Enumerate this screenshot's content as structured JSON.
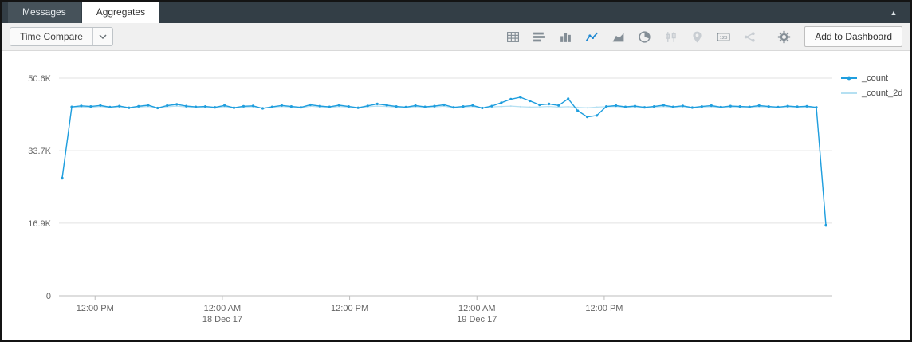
{
  "window": {
    "collapse_glyph": "▲"
  },
  "tabs": [
    {
      "label": "Messages",
      "active": false
    },
    {
      "label": "Aggregates",
      "active": true
    }
  ],
  "toolbar": {
    "time_compare_label": "Time Compare",
    "add_to_dashboard_label": "Add to Dashboard",
    "single_value_icon_text": "123",
    "icons": [
      {
        "name": "table",
        "state": "enabled"
      },
      {
        "name": "bar-chart-horizontal",
        "state": "enabled"
      },
      {
        "name": "column-chart",
        "state": "enabled"
      },
      {
        "name": "line-chart",
        "state": "active"
      },
      {
        "name": "area-chart",
        "state": "enabled"
      },
      {
        "name": "pie-chart",
        "state": "enabled"
      },
      {
        "name": "box-plot",
        "state": "disabled"
      },
      {
        "name": "map",
        "state": "disabled"
      },
      {
        "name": "single-value",
        "state": "enabled"
      },
      {
        "name": "transaction",
        "state": "disabled"
      },
      {
        "name": "settings-gear",
        "state": "enabled"
      }
    ]
  },
  "colors": {
    "accent_blue": "#1e88d2",
    "series_count": "#1f9ede",
    "series_count_2d": "#b5e0f2",
    "tabbar_bg": "#333e46",
    "toolbar_bg": "#f0f0f0",
    "gridline": "#e2e2e2"
  },
  "chart_data": {
    "type": "line",
    "title": "",
    "legend_position": "right",
    "grid": "horizontal",
    "x_axis": {
      "unit": "hours",
      "domain_hours": [
        -0.3,
        72.6
      ],
      "start_hour": 0,
      "step_hours": 0.9,
      "ticks": [
        {
          "hour": 3.1,
          "label": "12:00 PM",
          "sublabel": ""
        },
        {
          "hour": 15.1,
          "label": "12:00 AM",
          "sublabel": "18 Dec 17"
        },
        {
          "hour": 27.1,
          "label": "12:00 PM",
          "sublabel": ""
        },
        {
          "hour": 39.1,
          "label": "12:00 AM",
          "sublabel": "19 Dec 17"
        },
        {
          "hour": 51.1,
          "label": "12:00 PM",
          "sublabel": ""
        }
      ]
    },
    "y_axis": {
      "max": 50600,
      "ticks": [
        {
          "value": 0,
          "label": "0"
        },
        {
          "value": 16900,
          "label": "16.9K"
        },
        {
          "value": 33700,
          "label": "33.7K"
        },
        {
          "value": 50600,
          "label": "50.6K"
        }
      ]
    },
    "series": [
      {
        "name": "_count",
        "color": "#1f9ede",
        "width": 1.4,
        "markers": true,
        "marker_r": 1.6,
        "values": [
          27400,
          43900,
          44150,
          44000,
          44250,
          43850,
          44100,
          43700,
          44050,
          44300,
          43650,
          44200,
          44500,
          44100,
          43900,
          44000,
          43800,
          44250,
          43700,
          44050,
          44150,
          43550,
          43900,
          44250,
          44000,
          43800,
          44400,
          44100,
          43900,
          44300,
          44000,
          43700,
          44150,
          44600,
          44300,
          44000,
          43850,
          44200,
          43900,
          44100,
          44400,
          43800,
          44000,
          44250,
          43650,
          44100,
          44900,
          45700,
          46150,
          45300,
          44400,
          44600,
          44250,
          45800,
          43000,
          41600,
          41900,
          44000,
          44200,
          43900,
          44100,
          43800,
          44000,
          44300,
          43900,
          44150,
          43750,
          44000,
          44200,
          43850,
          44100,
          44000,
          43900,
          44200,
          44000,
          43850,
          44100,
          43950,
          44050,
          43800,
          16400
        ]
      },
      {
        "name": "_count_2d",
        "color": "#b5e0f2",
        "width": 1.2,
        "markers": true,
        "marker_r": 1.0,
        "values": [
          27100,
          43700,
          43900,
          43800,
          44000,
          43750,
          43900,
          43650,
          43850,
          44000,
          43700,
          43950,
          44100,
          43900,
          43750,
          43850,
          43700,
          43950,
          43650,
          43850,
          43950,
          43600,
          43800,
          44000,
          43850,
          43700,
          44050,
          43900,
          43750,
          44000,
          43850,
          43650,
          43950,
          44100,
          44000,
          43850,
          43750,
          43950,
          43800,
          43900,
          44050,
          43700,
          43850,
          44000,
          43650,
          43900,
          44000,
          44100,
          43950,
          43850,
          43900,
          44000,
          43850,
          43950,
          43800,
          43700,
          43850,
          43950,
          44000,
          43800,
          43900,
          43750,
          43850,
          44000,
          43800,
          43950,
          43700,
          43850,
          43950,
          43750,
          43900,
          43850,
          43800,
          43950,
          43850,
          43750,
          43900,
          43800,
          43850,
          43700,
          16100
        ]
      }
    ]
  }
}
